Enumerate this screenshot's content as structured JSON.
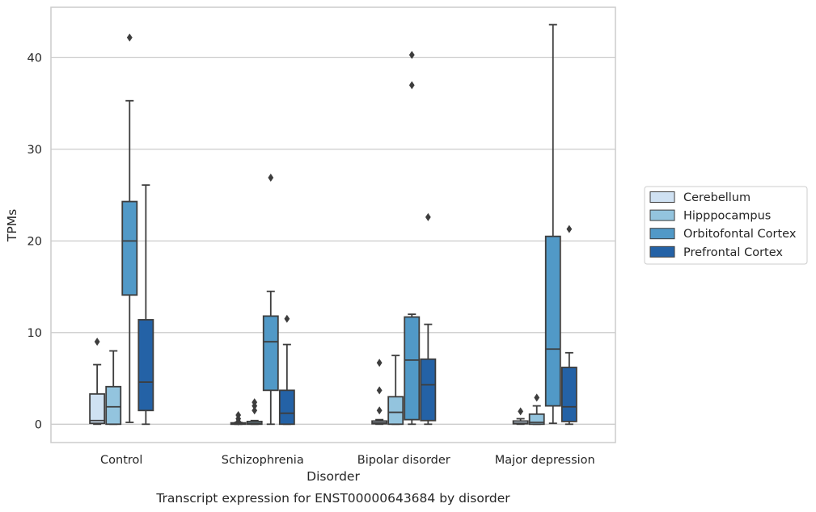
{
  "caption": "Transcript expression for ENST00000643684 by disorder",
  "chart_data": {
    "type": "box",
    "title": "",
    "xlabel": "Disorder",
    "ylabel": "TPMs",
    "ylim": [
      -2,
      45.5
    ],
    "yticks": [
      0,
      10,
      20,
      30,
      40
    ],
    "grid": "horizontal",
    "legend_position": "right",
    "categories": [
      "Control",
      "Schizophrenia",
      "Bipolar disorder",
      "Major depression"
    ],
    "series": [
      {
        "name": "Cerebellum",
        "color": "#cfe1f2",
        "boxes": [
          {
            "whisker_low": 0.0,
            "q1": 0.1,
            "median": 0.4,
            "q3": 3.3,
            "whisker_high": 6.5,
            "outliers": [
              9.0
            ]
          },
          {
            "whisker_low": 0.0,
            "q1": 0.0,
            "median": 0.05,
            "q3": 0.15,
            "whisker_high": 0.2,
            "outliers": [
              0.3,
              0.6,
              1.0
            ]
          },
          {
            "whisker_low": 0.0,
            "q1": 0.05,
            "median": 0.15,
            "q3": 0.35,
            "whisker_high": 0.5,
            "outliers": [
              1.5,
              3.7,
              6.7
            ]
          },
          {
            "whisker_low": 0.0,
            "q1": 0.05,
            "median": 0.1,
            "q3": 0.35,
            "whisker_high": 0.6,
            "outliers": [
              1.4
            ]
          }
        ]
      },
      {
        "name": "Hipppocampus",
        "color": "#93c4de",
        "boxes": [
          {
            "whisker_low": 0.0,
            "q1": 0.0,
            "median": 1.9,
            "q3": 4.1,
            "whisker_high": 8.0,
            "outliers": []
          },
          {
            "whisker_low": 0.0,
            "q1": 0.0,
            "median": 0.1,
            "q3": 0.3,
            "whisker_high": 0.4,
            "outliers": [
              1.5,
              2.0,
              2.4
            ]
          },
          {
            "whisker_low": 0.0,
            "q1": 0.0,
            "median": 1.3,
            "q3": 3.0,
            "whisker_high": 7.5,
            "outliers": []
          },
          {
            "whisker_low": 0.0,
            "q1": 0.0,
            "median": 0.2,
            "q3": 1.1,
            "whisker_high": 2.0,
            "outliers": [
              2.9
            ]
          }
        ]
      },
      {
        "name": "Orbitofontal Cortex",
        "color": "#5199c7",
        "boxes": [
          {
            "whisker_low": 0.2,
            "q1": 14.1,
            "median": 20.0,
            "q3": 24.3,
            "whisker_high": 35.3,
            "outliers": [
              42.2
            ]
          },
          {
            "whisker_low": 0.0,
            "q1": 3.7,
            "median": 9.0,
            "q3": 11.8,
            "whisker_high": 14.5,
            "outliers": [
              26.9
            ]
          },
          {
            "whisker_low": 0.0,
            "q1": 0.5,
            "median": 7.0,
            "q3": 11.7,
            "whisker_high": 12.0,
            "outliers": [
              37.0,
              40.3
            ]
          },
          {
            "whisker_low": 0.1,
            "q1": 2.0,
            "median": 8.2,
            "q3": 20.5,
            "whisker_high": 43.6,
            "outliers": []
          }
        ]
      },
      {
        "name": "Prefrontal Cortex",
        "color": "#2462a6",
        "boxes": [
          {
            "whisker_low": 0.0,
            "q1": 1.5,
            "median": 4.6,
            "q3": 11.4,
            "whisker_high": 26.1,
            "outliers": []
          },
          {
            "whisker_low": 0.0,
            "q1": 0.0,
            "median": 1.2,
            "q3": 3.7,
            "whisker_high": 8.7,
            "outliers": [
              11.5
            ]
          },
          {
            "whisker_low": 0.0,
            "q1": 0.4,
            "median": 4.3,
            "q3": 7.1,
            "whisker_high": 10.9,
            "outliers": [
              22.6
            ]
          },
          {
            "whisker_low": 0.0,
            "q1": 0.3,
            "median": 1.9,
            "q3": 6.2,
            "whisker_high": 7.8,
            "outliers": [
              21.3
            ]
          }
        ]
      }
    ]
  }
}
